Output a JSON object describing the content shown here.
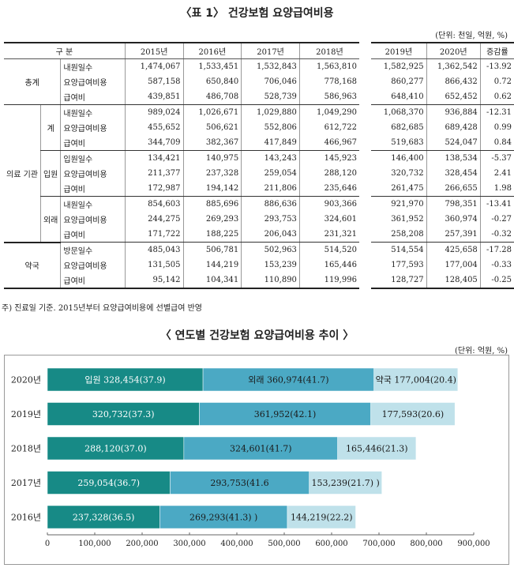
{
  "table": {
    "title": "〈표 1〉 건강보험 요양급여비용",
    "unit": "(단위: 천일, 억원, %)",
    "header": [
      "구 분",
      "2015년",
      "2016년",
      "2017년",
      "2018년",
      "2019년",
      "2020년",
      "증감률"
    ],
    "groups": [
      {
        "name": "총계",
        "sub": "",
        "rows": [
          {
            "label": "내원일수",
            "values": [
              "1,474,067",
              "1,533,451",
              "1,532,843",
              "1,563,810",
              "1,582,925",
              "1,362,542",
              "-13.92"
            ]
          },
          {
            "label": "요양급여비용",
            "values": [
              "587,158",
              "650,840",
              "706,046",
              "778,168",
              "860,277",
              "866,432",
              "0.72"
            ]
          },
          {
            "label": "급여비",
            "values": [
              "439,851",
              "486,708",
              "528,739",
              "586,963",
              "648,410",
              "652,452",
              "0.62"
            ]
          }
        ]
      },
      {
        "name": "의료 기관",
        "sub": "계",
        "rows": [
          {
            "label": "내원일수",
            "values": [
              "989,024",
              "1,026,671",
              "1,029,880",
              "1,049,290",
              "1,068,370",
              "936,884",
              "-12.31"
            ]
          },
          {
            "label": "요양급여비용",
            "values": [
              "455,652",
              "506,621",
              "552,806",
              "612,722",
              "682,685",
              "689,428",
              "0.99"
            ]
          },
          {
            "label": "급여비",
            "values": [
              "344,709",
              "382,367",
              "417,849",
              "466,967",
              "519,683",
              "524,047",
              "0.84"
            ]
          }
        ]
      },
      {
        "name": "",
        "sub": "입원",
        "rows": [
          {
            "label": "입원일수",
            "values": [
              "134,421",
              "140,975",
              "143,243",
              "145,923",
              "146,400",
              "138,534",
              "-5.37"
            ]
          },
          {
            "label": "요양급여비용",
            "values": [
              "211,377",
              "237,328",
              "259,054",
              "288,120",
              "320,732",
              "328,454",
              "2.41"
            ]
          },
          {
            "label": "급여비",
            "values": [
              "172,987",
              "194,142",
              "211,806",
              "235,646",
              "261,475",
              "266,655",
              "1.98"
            ]
          }
        ]
      },
      {
        "name": "",
        "sub": "외래",
        "rows": [
          {
            "label": "내원일수",
            "values": [
              "854,603",
              "885,696",
              "886,636",
              "903,366",
              "921,970",
              "798,351",
              "-13.41"
            ]
          },
          {
            "label": "요양급여비용",
            "values": [
              "244,275",
              "269,293",
              "293,753",
              "324,601",
              "361,952",
              "360,974",
              "-0.27"
            ]
          },
          {
            "label": "급여비",
            "values": [
              "171,722",
              "188,225",
              "206,043",
              "231,321",
              "258,208",
              "257,391",
              "-0.32"
            ]
          }
        ]
      },
      {
        "name": "약국",
        "sub": "",
        "rows": [
          {
            "label": "방문일수",
            "values": [
              "485,043",
              "506,781",
              "502,963",
              "514,520",
              "514,554",
              "425,658",
              "-17.28"
            ]
          },
          {
            "label": "요양급여비용",
            "values": [
              "131,505",
              "144,219",
              "153,239",
              "165,446",
              "177,593",
              "177,004",
              "-0.33"
            ]
          },
          {
            "label": "급여비",
            "values": [
              "95,142",
              "104,341",
              "110,890",
              "119,996",
              "128,727",
              "128,405",
              "-0.25"
            ]
          }
        ]
      }
    ],
    "note": "주) 진료일 기준. 2015년부터 요양급여비용에 선별급여 반영"
  },
  "chart_title": "〈 연도별 건강보험 요양급여비용 추이 〉",
  "chart_unit": "(단위: 억원, %)",
  "chart_data": {
    "type": "bar",
    "orientation": "horizontal",
    "stacked": true,
    "categories": [
      "2020년",
      "2019년",
      "2018년",
      "2017년",
      "2016년"
    ],
    "series": [
      {
        "name": "입원",
        "values": [
          328454,
          320732,
          288120,
          259054,
          237328
        ],
        "color": "#178a86"
      },
      {
        "name": "외래",
        "values": [
          360974,
          361952,
          324601,
          293753,
          269293
        ],
        "color": "#4ba9c4"
      },
      {
        "name": "약국",
        "values": [
          177004,
          177593,
          165446,
          153239,
          144219
        ],
        "color": "#bfe1ea"
      }
    ],
    "labels": [
      [
        "입원 328,454(37.9)",
        "외래 360,974(41.7)",
        "약국 177,004(20.4)"
      ],
      [
        "320,732(37.3)",
        "361,952(42.1)",
        "177,593(20.6)"
      ],
      [
        "288,120(37.0)",
        "324,601(41.7)",
        "165,446(21.3)"
      ],
      [
        "259,054(36.7)",
        "293,753(41.6",
        "153,239(21.7) )"
      ],
      [
        "237,328(36.5)",
        "269,293(41.3) )",
        "144,219(22.2)"
      ]
    ],
    "xlim": [
      0,
      900000
    ],
    "xticks": [
      "0",
      "100,000",
      "200,000",
      "300,000",
      "400,000",
      "500,000",
      "600,000",
      "700,000",
      "800,000",
      "900,000"
    ],
    "grid": false
  }
}
